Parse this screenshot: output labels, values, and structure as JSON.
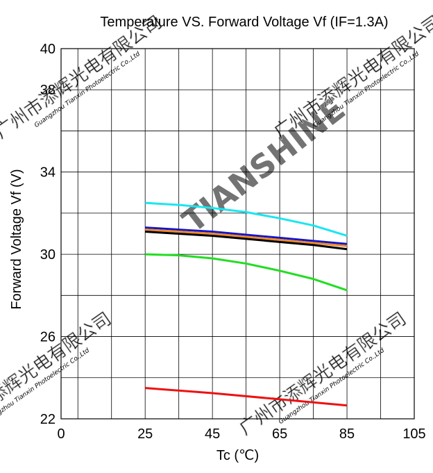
{
  "chart_data": {
    "type": "line",
    "title": "Temperature VS.  Forward  Voltage  Vf (IF=1.3A)",
    "xlabel": "Tc (℃)",
    "ylabel": "Forward  Voltage  Vf  (V)",
    "xlim": [
      0,
      105
    ],
    "ylim": [
      22,
      40
    ],
    "x_grid": [
      0,
      5,
      15,
      25,
      35,
      45,
      55,
      65,
      75,
      85,
      95,
      105
    ],
    "y_grid": [
      22,
      24,
      26,
      28,
      30,
      32,
      34,
      36,
      38,
      40
    ],
    "x_ticks": [
      0,
      25,
      45,
      65,
      85,
      105
    ],
    "x_tick_labels": [
      "0",
      "25",
      "45",
      "65",
      "85",
      "105"
    ],
    "y_ticks": [
      22,
      26,
      30,
      34,
      38,
      40
    ],
    "y_tick_labels": [
      "22",
      "26",
      "30",
      "34",
      "38",
      "40"
    ],
    "grid": true,
    "legend": "none",
    "series": [
      {
        "color": "#19e6f0",
        "x": [
          25,
          35,
          45,
          55,
          65,
          75,
          85
        ],
        "values": [
          32.5,
          32.4,
          32.25,
          32.05,
          31.75,
          31.4,
          30.9
        ]
      },
      {
        "color": "#1515c8",
        "x": [
          25,
          35,
          45,
          55,
          65,
          75,
          85
        ],
        "values": [
          31.3,
          31.2,
          31.1,
          30.95,
          30.8,
          30.65,
          30.5
        ]
      },
      {
        "color": "#f08a28",
        "x": [
          25,
          35,
          45,
          55,
          65,
          75,
          85
        ],
        "values": [
          31.2,
          31.1,
          31.0,
          30.85,
          30.7,
          30.55,
          30.4
        ]
      },
      {
        "color": "#000000",
        "x": [
          25,
          35,
          45,
          55,
          65,
          75,
          85
        ],
        "values": [
          31.1,
          31.0,
          30.9,
          30.75,
          30.6,
          30.45,
          30.25
        ]
      },
      {
        "color": "#22dd22",
        "x": [
          25,
          35,
          45,
          55,
          65,
          75,
          85
        ],
        "values": [
          30.0,
          29.95,
          29.8,
          29.55,
          29.2,
          28.8,
          28.25
        ]
      },
      {
        "color": "#ee1111",
        "x": [
          25,
          45,
          65,
          85
        ],
        "values": [
          23.5,
          23.25,
          22.95,
          22.65
        ]
      }
    ]
  },
  "watermark": {
    "brand": "TIANSHINE",
    "stamp_cn": "广州市添辉光电有限公司",
    "stamp_en": "Guangzhou Tianxin Photoelectric Co.,Ltd",
    "color": "#cccccc"
  }
}
